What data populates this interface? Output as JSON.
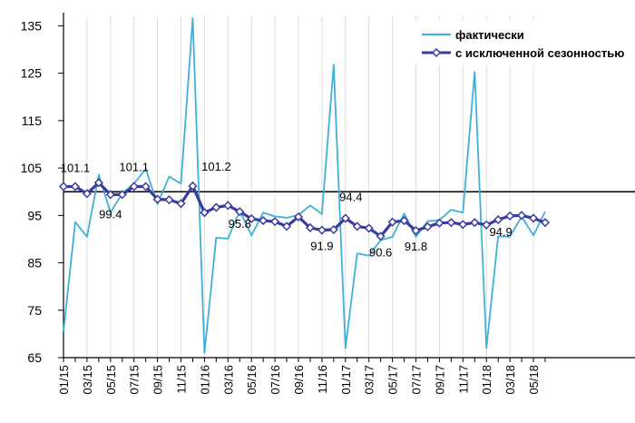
{
  "chart_data": {
    "type": "line",
    "title": "",
    "xlabel": "",
    "ylabel": "",
    "ylim": [
      65,
      137
    ],
    "yticks": [
      65,
      75,
      85,
      95,
      105,
      115,
      125,
      135
    ],
    "reference_line": 100,
    "grid": "vertical",
    "legend_position": "top-right",
    "tick_labels": [
      "01/15",
      "03/15",
      "05/15",
      "07/15",
      "09/15",
      "11/15",
      "01/16",
      "03/16",
      "05/16",
      "07/16",
      "09/16",
      "11/16",
      "01/17",
      "03/17",
      "05/17",
      "07/17",
      "09/17",
      "11/17",
      "01/18",
      "03/18",
      "05/18"
    ],
    "series": [
      {
        "name": "фактически",
        "color": "#3fb1d7",
        "values": [
          70.5,
          93.6,
          90.5,
          103.6,
          95.6,
          99.7,
          101.7,
          104.8,
          97.4,
          103.2,
          101.7,
          137.0,
          66.0,
          90.3,
          90.1,
          96.0,
          90.8,
          95.6,
          94.8,
          94.5,
          95.1,
          97.1,
          95.3,
          126.8,
          67.0,
          87.0,
          86.5,
          89.8,
          90.5,
          95.4,
          90.5,
          93.8,
          94.0,
          96.2,
          95.6,
          125.3,
          67.0,
          90.6,
          90.5,
          94.8,
          90.8,
          95.8
        ]
      },
      {
        "name": "с исключенной сезонностью",
        "color": "#3c3c9e",
        "values": [
          101.1,
          101.1,
          99.6,
          101.9,
          99.4,
          99.4,
          101.1,
          101.1,
          98.4,
          98.3,
          97.5,
          101.2,
          95.6,
          96.7,
          97.1,
          95.8,
          94.3,
          93.9,
          93.7,
          92.7,
          94.7,
          92.4,
          91.9,
          92.0,
          94.4,
          92.7,
          92.3,
          90.6,
          93.6,
          93.9,
          91.8,
          92.6,
          93.4,
          93.5,
          93.1,
          93.5,
          93.0,
          94.1,
          94.9,
          95.0,
          94.4,
          93.5
        ]
      }
    ],
    "data_labels": [
      {
        "text": "101.1",
        "index": 0
      },
      {
        "text": "99.4",
        "index": 4
      },
      {
        "text": "101.1",
        "index": 6
      },
      {
        "text": "101.2",
        "index": 11
      },
      {
        "text": "95.8",
        "index": 15
      },
      {
        "text": "91.9",
        "index": 22
      },
      {
        "text": "94.4",
        "index": 24
      },
      {
        "text": "90.6",
        "index": 27
      },
      {
        "text": "91.8",
        "index": 30
      },
      {
        "text": "94.9",
        "index": 38
      }
    ]
  }
}
